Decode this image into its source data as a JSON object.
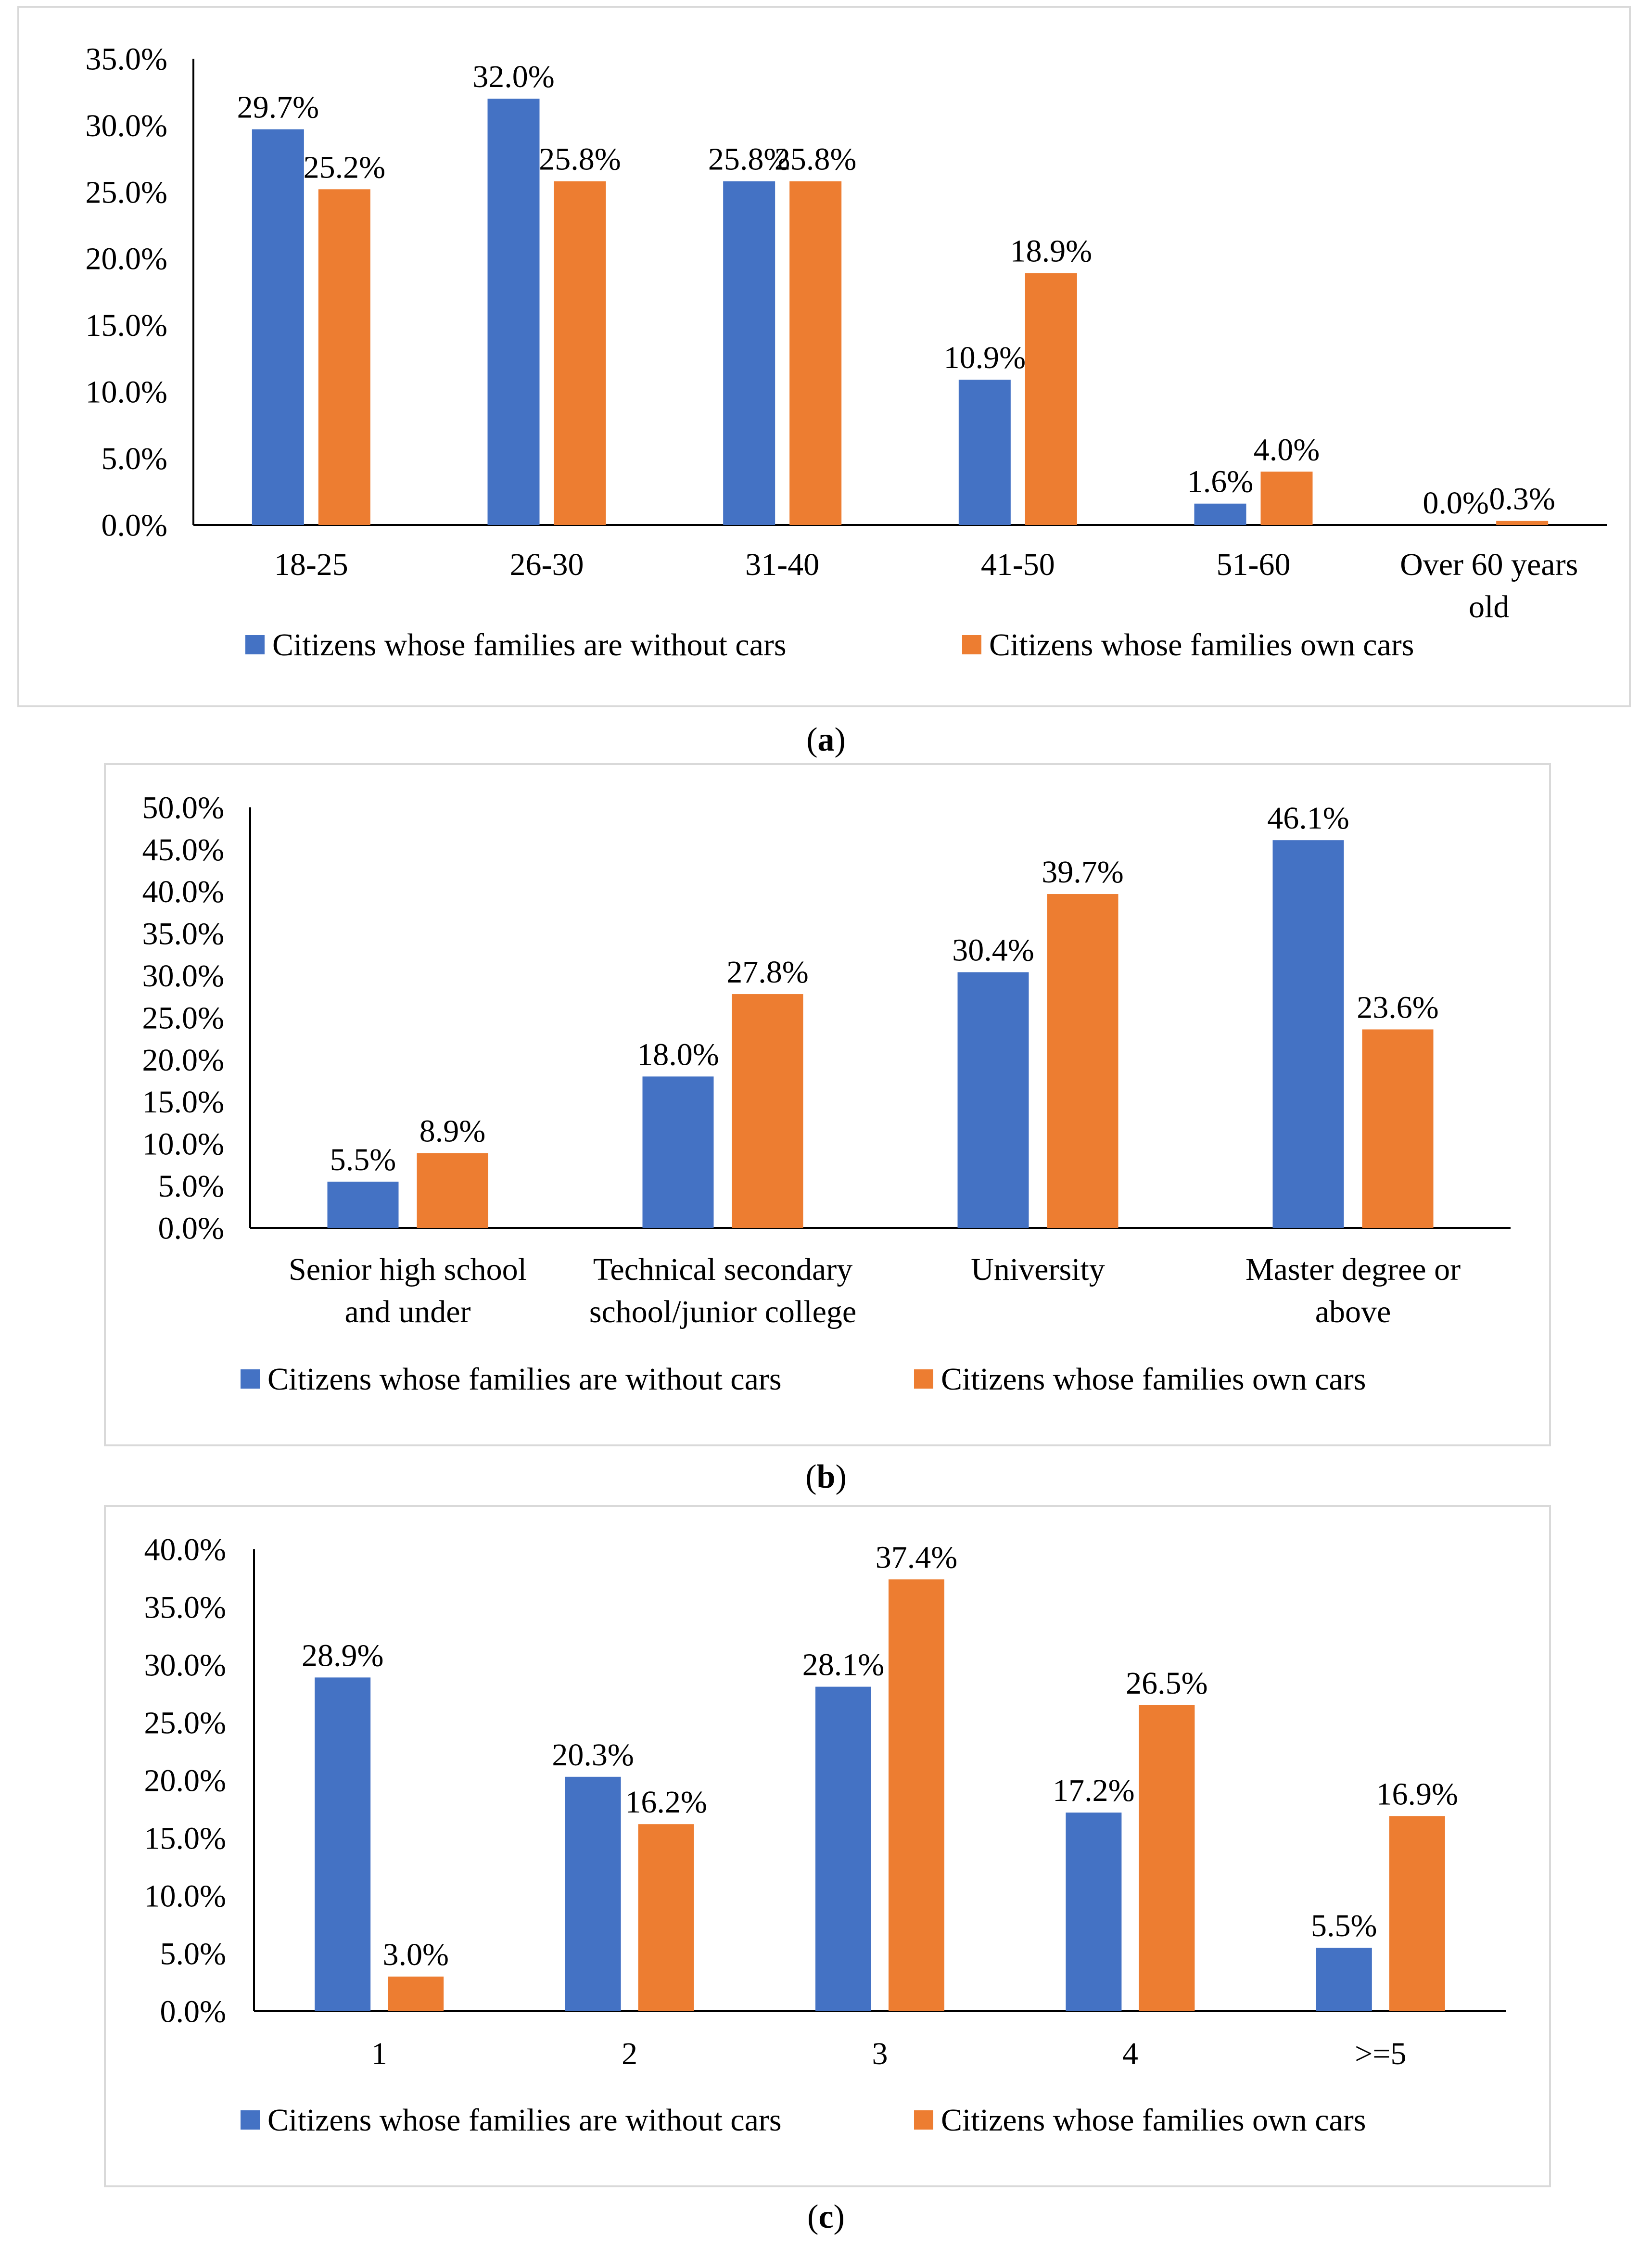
{
  "colors": {
    "without_cars": "#4472c4",
    "own_cars": "#ed7d31",
    "axis": "#000000",
    "frame": "#d9d9d9"
  },
  "chart_data": [
    {
      "type": "bar",
      "caption_letter": "a",
      "title": "",
      "xlabel": "",
      "ylabel": "",
      "ylim": [
        0,
        35
      ],
      "yticks": [
        "0.0%",
        "5.0%",
        "10.0%",
        "15.0%",
        "20.0%",
        "25.0%",
        "30.0%",
        "35.0%"
      ],
      "categories": [
        [
          "18-25"
        ],
        [
          "26-30"
        ],
        [
          "31-40"
        ],
        [
          "41-50"
        ],
        [
          "51-60"
        ],
        [
          "Over 60 years",
          "old"
        ]
      ],
      "series": [
        {
          "name": "Citizens whose families are without cars",
          "values": [
            29.7,
            32.0,
            25.8,
            10.9,
            1.6,
            0.0
          ],
          "labels": [
            "29.7%",
            "32.0%",
            "25.8%",
            "10.9%",
            "1.6%",
            "0.0%"
          ]
        },
        {
          "name": "Citizens whose families own cars",
          "values": [
            25.2,
            25.8,
            25.8,
            18.9,
            4.0,
            0.3
          ],
          "labels": [
            "25.2%",
            "25.8%",
            "25.8%",
            "18.9%",
            "4.0%",
            "0.3%"
          ]
        }
      ],
      "grid": false,
      "legend": "bottom"
    },
    {
      "type": "bar",
      "caption_letter": "b",
      "title": "",
      "xlabel": "",
      "ylabel": "",
      "ylim": [
        0,
        50
      ],
      "yticks": [
        "0.0%",
        "5.0%",
        "10.0%",
        "15.0%",
        "20.0%",
        "25.0%",
        "30.0%",
        "35.0%",
        "40.0%",
        "45.0%",
        "50.0%"
      ],
      "categories": [
        [
          "Senior high school",
          "and under"
        ],
        [
          "Technical secondary",
          "school/junior college"
        ],
        [
          "University"
        ],
        [
          "Master degree or",
          "above"
        ]
      ],
      "series": [
        {
          "name": "Citizens whose families are without cars",
          "values": [
            5.5,
            18.0,
            30.4,
            46.1
          ],
          "labels": [
            "5.5%",
            "18.0%",
            "30.4%",
            "46.1%"
          ]
        },
        {
          "name": "Citizens whose families own cars",
          "values": [
            8.9,
            27.8,
            39.7,
            23.6
          ],
          "labels": [
            "8.9%",
            "27.8%",
            "39.7%",
            "23.6%"
          ]
        }
      ],
      "grid": false,
      "legend": "bottom"
    },
    {
      "type": "bar",
      "caption_letter": "c",
      "title": "",
      "xlabel": "",
      "ylabel": "",
      "ylim": [
        0,
        40
      ],
      "yticks": [
        "0.0%",
        "5.0%",
        "10.0%",
        "15.0%",
        "20.0%",
        "25.0%",
        "30.0%",
        "35.0%",
        "40.0%"
      ],
      "categories": [
        [
          "1"
        ],
        [
          "2"
        ],
        [
          "3"
        ],
        [
          "4"
        ],
        [
          ">=5"
        ]
      ],
      "series": [
        {
          "name": "Citizens whose families are without cars",
          "values": [
            28.9,
            20.3,
            28.1,
            17.2,
            5.5
          ],
          "labels": [
            "28.9%",
            "20.3%",
            "28.1%",
            "17.2%",
            "5.5%"
          ]
        },
        {
          "name": "Citizens whose families own cars",
          "values": [
            3.0,
            16.2,
            37.4,
            26.5,
            16.9
          ],
          "labels": [
            "3.0%",
            "16.2%",
            "37.4%",
            "26.5%",
            "16.9%"
          ]
        }
      ],
      "grid": false,
      "legend": "bottom"
    }
  ]
}
